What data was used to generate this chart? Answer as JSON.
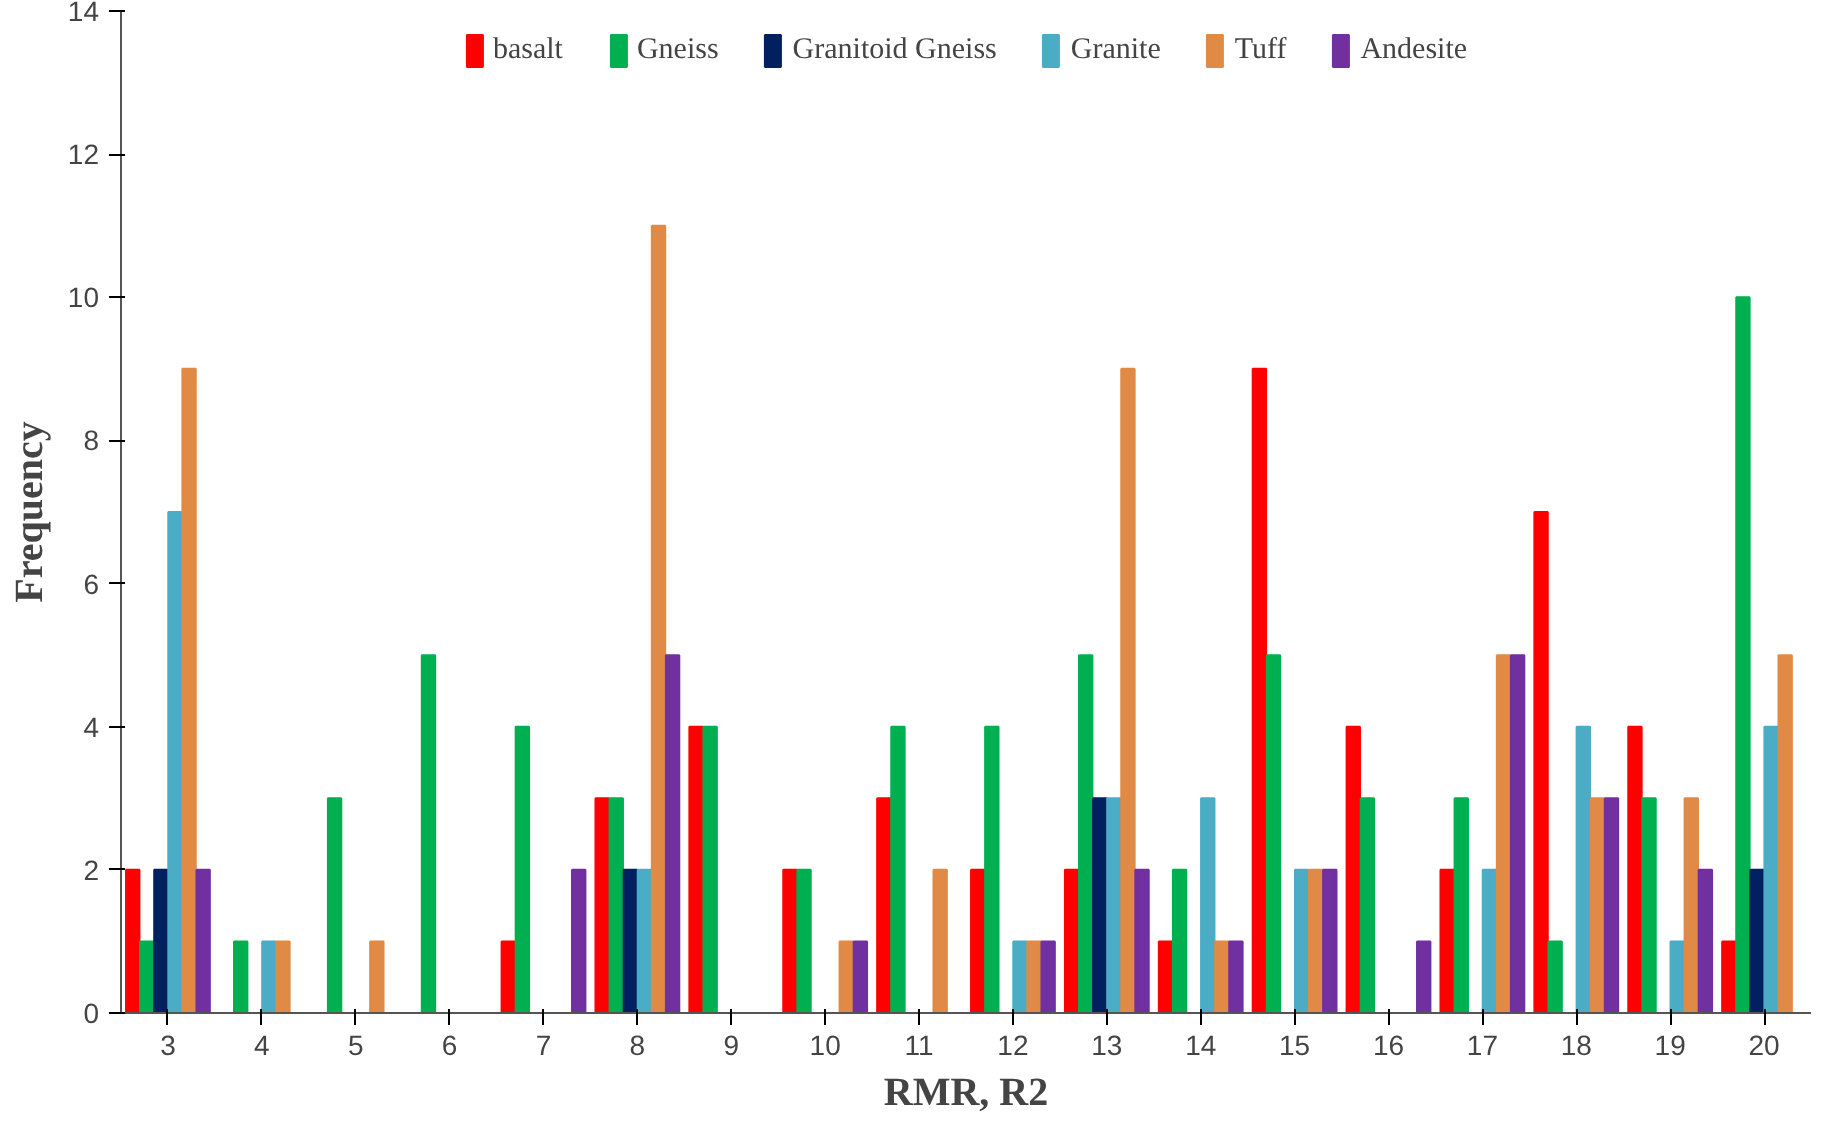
{
  "chart_data": {
    "type": "bar",
    "xlabel": "RMR, R2",
    "ylabel": "Frequency",
    "categories": [
      "3",
      "4",
      "5",
      "6",
      "7",
      "8",
      "9",
      "10",
      "11",
      "12",
      "13",
      "14",
      "15",
      "16",
      "17",
      "18",
      "19",
      "20"
    ],
    "series": [
      {
        "name": "basalt",
        "color": "#ff0000",
        "values": [
          2,
          0,
          0,
          0,
          1,
          3,
          4,
          2,
          3,
          2,
          2,
          1,
          9,
          4,
          2,
          7,
          4,
          1
        ]
      },
      {
        "name": "Gneiss",
        "color": "#00b050",
        "values": [
          1,
          1,
          3,
          5,
          4,
          3,
          4,
          2,
          4,
          4,
          5,
          2,
          5,
          3,
          3,
          1,
          3,
          10
        ]
      },
      {
        "name": "Granitoid Gneiss",
        "color": "#002060",
        "values": [
          2,
          0,
          0,
          0,
          0,
          2,
          0,
          0,
          0,
          0,
          3,
          0,
          0,
          0,
          0,
          0,
          0,
          2
        ]
      },
      {
        "name": "Granite",
        "color": "#4bacc6",
        "values": [
          7,
          1,
          0,
          0,
          0,
          2,
          0,
          0,
          0,
          1,
          3,
          3,
          2,
          0,
          2,
          4,
          1,
          4
        ]
      },
      {
        "name": "Tuff",
        "color": "#e08a45",
        "values": [
          9,
          1,
          1,
          0,
          0,
          11,
          0,
          1,
          2,
          1,
          9,
          1,
          2,
          0,
          5,
          3,
          3,
          5
        ]
      },
      {
        "name": "Andesite",
        "color": "#7030a0",
        "values": [
          2,
          0,
          0,
          0,
          2,
          5,
          0,
          1,
          0,
          1,
          2,
          1,
          2,
          1,
          5,
          3,
          2,
          null
        ]
      }
    ],
    "ylim": [
      0,
      14
    ],
    "yticks": [
      0,
      2,
      4,
      6,
      8,
      10,
      12,
      14
    ],
    "grid": false,
    "legend": "top"
  }
}
